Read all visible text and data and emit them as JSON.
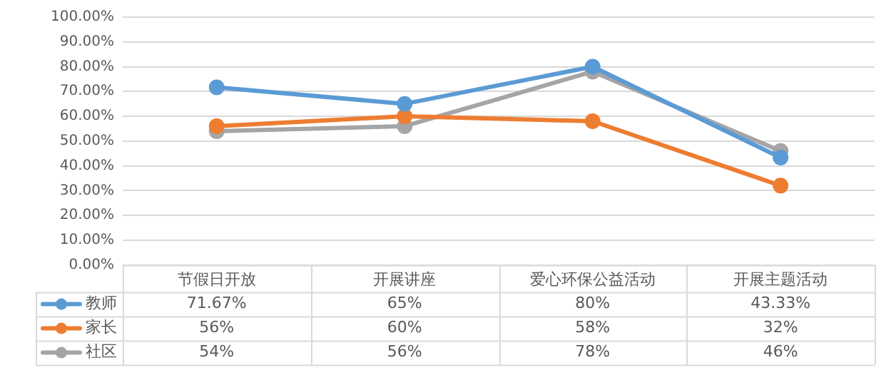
{
  "chart_data": {
    "type": "line",
    "categories": [
      "节假日开放",
      "开展讲座",
      "爱心环保公益活动",
      "开展主题活动"
    ],
    "series": [
      {
        "name": "教师",
        "color": "#5b9bd5",
        "values": [
          71.67,
          65,
          80,
          43.33
        ],
        "value_labels": [
          "71.67%",
          "65%",
          "80%",
          "43.33%"
        ]
      },
      {
        "name": "家长",
        "color": "#ed7d31",
        "values": [
          56,
          60,
          58,
          32
        ],
        "value_labels": [
          "56%",
          "60%",
          "58%",
          "32%"
        ]
      },
      {
        "name": "社区",
        "color": "#a5a5a5",
        "values": [
          54,
          56,
          78,
          46
        ],
        "value_labels": [
          "54%",
          "56%",
          "78%",
          "46%"
        ]
      }
    ],
    "ylim": [
      0,
      100
    ],
    "yticks": [
      {
        "value": 0,
        "label": "0.00%"
      },
      {
        "value": 10,
        "label": "10.00%"
      },
      {
        "value": 20,
        "label": "20.00%"
      },
      {
        "value": 30,
        "label": "30.00%"
      },
      {
        "value": 40,
        "label": "40.00%"
      },
      {
        "value": 50,
        "label": "50.00%"
      },
      {
        "value": 60,
        "label": "60.00%"
      },
      {
        "value": 70,
        "label": "70.00%"
      },
      {
        "value": 80,
        "label": "80.00%"
      },
      {
        "value": 90,
        "label": "90.00%"
      },
      {
        "value": 100,
        "label": "100.00%"
      }
    ],
    "grid": "y",
    "legend": "bottom left",
    "marker": "circle",
    "line_style": "solid"
  }
}
